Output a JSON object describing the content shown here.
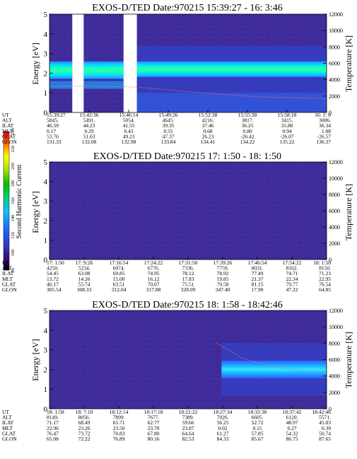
{
  "colorbar": {
    "label": "Second Harmonic Current",
    "ticks": [
      "80",
      "100",
      "120",
      "140",
      "160",
      "180",
      "200",
      "220",
      "240"
    ]
  },
  "chart_data": [
    {
      "type": "heatmap",
      "title": "EXOS-D/TED   Date:970215  15:39:27 - 16: 3:46",
      "ylabel": "Energy [eV]",
      "y2label": "Temperature [K]",
      "ylim": [
        0,
        5
      ],
      "y2lim": [
        0,
        12000
      ],
      "yticks": [
        "0",
        "1",
        "2",
        "3",
        "4",
        "5"
      ],
      "y2ticks": [
        "0",
        "2000",
        "4000",
        "6000",
        "8000",
        "10000",
        "12000"
      ],
      "xlim": [
        0,
        1459
      ],
      "data_gaps": [
        [
          120,
          180
        ],
        [
          390,
          460
        ]
      ],
      "band": {
        "start": 460,
        "end": 1459,
        "center_ev": 2.2,
        "half_width_ev": 0.4
      },
      "temperature_curve": {
        "x": [
          0,
          250,
          460,
          800,
          1100,
          1459
        ],
        "y": [
          3200,
          3200,
          3100,
          2400,
          1900,
          1700
        ]
      },
      "ephemeris": {
        "labels": [
          "UT",
          "ALT",
          "ILAT",
          "MLT",
          "GLAT",
          "GLON"
        ],
        "columns": [
          [
            "15:39:27",
            "5845.",
            "46.59",
            "0.17",
            "53.76",
            "131.33"
          ],
          [
            "15:42:36",
            "5491.",
            "44.23",
            "0.29",
            "51.63",
            "132.08"
          ],
          [
            "15:46:14",
            "5054.",
            "41.55",
            "0.43",
            "49.23",
            "132.98"
          ],
          [
            "15:49:26",
            "4645.",
            "39.35",
            "0.55",
            "47.37",
            "133.84"
          ],
          [
            "15:52:38",
            "4216.",
            "37.46",
            "0.68",
            "26.23",
            "134.41"
          ],
          [
            "15:55:30",
            "3817.",
            "36.25",
            "0.80",
            "-26.42",
            "134.22"
          ],
          [
            "15:58:18",
            "3415.",
            "35.80",
            "0.94",
            "-26.07",
            "135.22"
          ],
          [
            "16: 1: 6",
            "3006.",
            "36.34",
            "1.08",
            "-26.57",
            "136.37"
          ]
        ]
      }
    },
    {
      "type": "heatmap",
      "title": "EXOS-D/TED   Date:970215  17: 1:50 - 18: 1:50",
      "ylabel": "Energy [eV]",
      "y2label": "Temperature [K]",
      "ylim": [
        0,
        5
      ],
      "y2lim": [
        0,
        12000
      ],
      "yticks": [
        "0",
        "1",
        "2",
        "3",
        "4",
        "5"
      ],
      "y2ticks": [
        "0",
        "2000",
        "4000",
        "6000",
        "8000",
        "10000",
        "12000"
      ],
      "xlim": [
        0,
        3600
      ],
      "data_gaps": [],
      "band": null,
      "temperature_curve": null,
      "ephemeris": {
        "labels": [
          "UT",
          "ALT",
          "ILAT",
          "MLT",
          "GLAT",
          "GLON"
        ],
        "columns": [
          [
            "17: 1:50",
            "4250.",
            "54.45",
            "13.72",
            "46.17",
            "305.54"
          ],
          [
            "17: 9:26",
            "5234.",
            "63.08",
            "14.26",
            "55.74",
            "308.33"
          ],
          [
            "17:16:54",
            "6074.",
            "69.85",
            "15.00",
            "63.51",
            "312.04"
          ],
          [
            "17:24:22",
            "6776.",
            "74.95",
            "16.12",
            "70.07",
            "317.88"
          ],
          [
            "17:31:50",
            "7336.",
            "78.12",
            "17.83",
            "75.51",
            "328.09"
          ],
          [
            "17:39:26",
            "7759.",
            "78.92",
            "19.85",
            "79.58",
            "347.40"
          ],
          [
            "17:46:54",
            "8031.",
            "77.49",
            "21.37",
            "81.15",
            "17.90"
          ],
          [
            "17:54:22",
            "8162.",
            "74.71",
            "22.34",
            "79.77",
            "47.22"
          ],
          [
            "18: 1:50",
            "8150.",
            "71.23",
            "22.95",
            "76.54",
            "64.85"
          ]
        ]
      }
    },
    {
      "type": "heatmap",
      "title": "EXOS-D/TED   Date:970215  18: 1:58 - 18:42:46",
      "ylabel": "Energy [eV]",
      "y2label": "Temperature [K]",
      "ylim": [
        0,
        5
      ],
      "y2lim": [
        0,
        12000
      ],
      "yticks": [
        "0",
        "1",
        "2",
        "3",
        "4",
        "5"
      ],
      "y2ticks": [
        "0",
        "2000",
        "4000",
        "6000",
        "8000",
        "10000",
        "12000"
      ],
      "xlim": [
        0,
        2448
      ],
      "data_gaps": [],
      "band": {
        "start": 1520,
        "end": 2448,
        "center_ev": 2.0,
        "half_width_ev": 0.45
      },
      "temperature_curve": {
        "x": [
          1480,
          1700,
          1950,
          2200,
          2448
        ],
        "y": [
          8000,
          6200,
          5200,
          4700,
          4400
        ]
      },
      "ephemeris": {
        "labels": [
          "UT",
          "ALT",
          "ILAT",
          "MLT",
          "GLAT",
          "GLON"
        ],
        "columns": [
          [
            "18: 1:58",
            "8149.",
            "71.17",
            "22.96",
            "76.47",
            "65.08"
          ],
          [
            "18: 7:10",
            "8056.",
            "68.49",
            "23.26",
            "73.72",
            "72.22"
          ],
          [
            "18:12:14",
            "7899.",
            "65.71",
            "23.50",
            "70.83",
            "76.89"
          ],
          [
            "18:17:18",
            "7677.",
            "62.77",
            "23.70",
            "67.80",
            "80.16"
          ],
          [
            "18:22:22",
            "7389.",
            "59.66",
            "23.87",
            "64.64",
            "82.53"
          ],
          [
            "18:27:34",
            "7026.",
            "56.25",
            "0.02",
            "61.27",
            "84.33"
          ],
          [
            "18:32:38",
            "6605.",
            "52.72",
            "0.15",
            "57.85",
            "85.67"
          ],
          [
            "18:37:42",
            "6120.",
            "48.97",
            "0.27",
            "54.32",
            "86.75"
          ],
          [
            "18:42:46",
            "5571.",
            "45.03",
            "0.39",
            "50.74",
            "87.65"
          ]
        ]
      }
    }
  ]
}
